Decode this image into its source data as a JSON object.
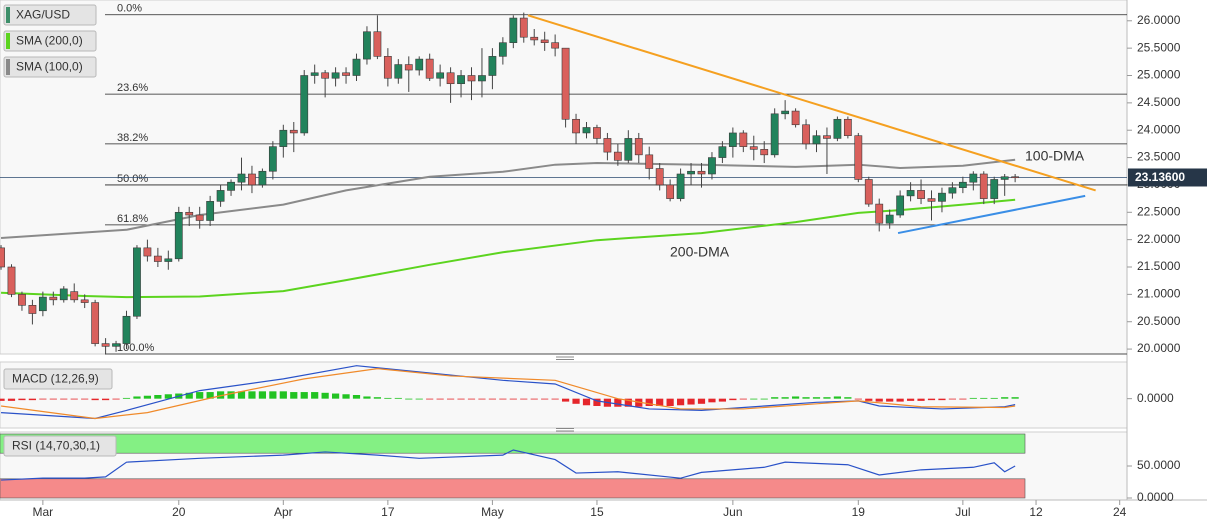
{
  "chart_data": [
    {
      "type": "candlestick",
      "name": "XAG/USD",
      "up_color": "#22835c",
      "down_color": "#d9605c",
      "xlim": [
        -4.1,
        103.7
      ],
      "ylim": [
        19.91,
        26.38
      ],
      "yticks": [
        {
          "value": 20,
          "label": "20.0000"
        },
        {
          "value": 20.5,
          "label": "20.5000"
        },
        {
          "value": 21,
          "label": "21.0000"
        },
        {
          "value": 21.5,
          "label": "21.5000"
        },
        {
          "value": 22,
          "label": "22.0000"
        },
        {
          "value": 22.5,
          "label": "22.5000"
        },
        {
          "value": 23,
          "label": "23.0000"
        },
        {
          "value": 23.5,
          "label": "23.5000"
        },
        {
          "value": 24,
          "label": "24.0000"
        },
        {
          "value": 24.5,
          "label": "24.5000"
        },
        {
          "value": 25,
          "label": "25.0000"
        },
        {
          "value": 25.5,
          "label": "25.5000"
        },
        {
          "value": 26,
          "label": "26.0000"
        }
      ],
      "x": [
        -4,
        -3,
        -2,
        -1,
        0,
        1,
        2,
        3,
        4,
        5,
        6,
        7,
        8,
        9,
        10,
        11,
        12,
        13,
        14,
        15,
        16,
        17,
        18,
        19,
        20,
        21,
        22,
        23,
        24,
        25,
        26,
        27,
        28,
        29,
        30,
        31,
        32,
        33,
        34,
        35,
        36,
        37,
        38,
        39,
        40,
        41,
        42,
        43,
        44,
        45,
        46,
        47,
        48,
        49,
        50,
        51,
        52,
        53,
        54,
        55,
        56,
        57,
        58,
        59,
        60,
        61,
        62,
        63,
        64,
        65,
        66,
        67,
        68,
        69,
        70,
        71,
        72,
        73,
        74,
        75,
        76,
        77,
        78,
        79,
        80,
        81,
        82,
        83,
        84,
        85,
        86,
        87,
        88,
        89,
        90,
        91,
        92,
        93
      ],
      "open": [
        21.85,
        21.5,
        21.0,
        20.8,
        20.7,
        20.95,
        20.9,
        21.05,
        20.9,
        20.85,
        20.1,
        20.05,
        20.1,
        20.6,
        21.85,
        21.7,
        21.6,
        21.65,
        22.5,
        22.45,
        22.35,
        22.7,
        22.9,
        23.05,
        23.2,
        23.0,
        23.25,
        23.7,
        24.0,
        23.95,
        25.0,
        25.05,
        24.95,
        25.05,
        25.0,
        25.3,
        25.8,
        25.35,
        24.95,
        25.2,
        25.1,
        25.3,
        24.95,
        25.05,
        24.85,
        25.0,
        24.9,
        25.0,
        25.35,
        25.6,
        26.05,
        25.7,
        25.65,
        25.6,
        25.5,
        24.2,
        23.95,
        24.05,
        23.85,
        23.6,
        23.45,
        23.85,
        23.55,
        23.3,
        23.0,
        22.75,
        23.2,
        23.25,
        23.2,
        23.5,
        23.7,
        23.95,
        23.7,
        23.65,
        23.55,
        24.3,
        24.35,
        24.1,
        23.75,
        23.9,
        23.85,
        24.2,
        23.9,
        23.1,
        22.65,
        22.3,
        22.45,
        22.8,
        22.9,
        22.75,
        22.7,
        22.85,
        22.95,
        23.05,
        23.2,
        22.75,
        23.1,
        23.15
      ],
      "high": [
        21.9,
        21.55,
        21.05,
        20.9,
        21.05,
        21.05,
        21.15,
        21.2,
        21.0,
        20.9,
        20.2,
        20.15,
        20.7,
        21.9,
        22.0,
        21.85,
        21.8,
        22.6,
        22.6,
        22.6,
        22.8,
        23.0,
        23.1,
        23.5,
        23.35,
        23.3,
        23.8,
        24.1,
        24.15,
        25.1,
        25.2,
        25.1,
        25.15,
        25.15,
        25.4,
        25.9,
        26.1,
        25.5,
        25.3,
        25.35,
        25.35,
        25.4,
        25.2,
        25.15,
        25.1,
        25.15,
        25.5,
        25.5,
        25.7,
        26.1,
        26.15,
        25.85,
        25.8,
        25.75,
        25.5,
        24.3,
        24.15,
        24.1,
        23.95,
        23.75,
        24.0,
        23.95,
        23.7,
        23.4,
        23.1,
        23.3,
        23.4,
        23.4,
        23.6,
        23.8,
        24.05,
        24.0,
        23.9,
        23.8,
        24.4,
        24.55,
        24.4,
        24.2,
        24.0,
        24.05,
        24.25,
        24.25,
        23.95,
        23.15,
        22.75,
        22.55,
        22.9,
        23.05,
        23.1,
        22.9,
        22.95,
        23.05,
        23.15,
        23.25,
        23.25,
        23.15,
        23.2,
        23.2
      ],
      "low": [
        21.45,
        20.95,
        20.7,
        20.45,
        20.6,
        20.8,
        20.85,
        20.85,
        20.75,
        20.05,
        19.9,
        19.95,
        20.0,
        20.55,
        21.6,
        21.5,
        21.45,
        21.6,
        22.25,
        22.2,
        22.25,
        22.6,
        22.8,
        22.9,
        22.85,
        22.95,
        23.1,
        23.5,
        23.6,
        23.9,
        24.85,
        24.6,
        24.8,
        24.85,
        24.9,
        25.2,
        25.3,
        24.8,
        24.85,
        24.7,
        25.0,
        24.9,
        24.8,
        24.5,
        24.6,
        24.55,
        24.6,
        24.75,
        25.2,
        25.5,
        25.6,
        25.55,
        25.45,
        25.35,
        24.05,
        23.75,
        23.85,
        23.75,
        23.45,
        23.35,
        23.4,
        23.4,
        23.1,
        22.9,
        22.7,
        22.7,
        23.0,
        22.95,
        23.1,
        23.4,
        23.5,
        23.6,
        23.45,
        23.4,
        23.5,
        24.2,
        24.05,
        23.65,
        23.6,
        23.2,
        23.8,
        23.85,
        23.05,
        22.6,
        22.15,
        22.2,
        22.4,
        22.7,
        22.65,
        22.35,
        22.5,
        22.75,
        22.85,
        22.9,
        22.65,
        22.65,
        22.8,
        23.05
      ],
      "close": [
        21.5,
        21.0,
        20.8,
        20.65,
        20.95,
        20.9,
        21.1,
        20.9,
        20.85,
        20.1,
        20.05,
        20.1,
        20.6,
        21.85,
        21.7,
        21.6,
        21.65,
        22.5,
        22.45,
        22.35,
        22.7,
        22.9,
        23.05,
        23.2,
        23.0,
        23.25,
        23.7,
        24.0,
        23.95,
        25.0,
        25.05,
        24.95,
        25.05,
        25.0,
        25.3,
        25.8,
        25.35,
        24.95,
        25.2,
        25.1,
        25.3,
        24.95,
        25.05,
        24.85,
        25.0,
        24.9,
        25.0,
        25.35,
        25.6,
        26.05,
        25.7,
        25.65,
        25.6,
        25.5,
        24.2,
        23.95,
        24.05,
        23.85,
        23.6,
        23.45,
        23.85,
        23.55,
        23.3,
        23.0,
        22.75,
        23.2,
        23.25,
        23.2,
        23.5,
        23.7,
        23.95,
        23.7,
        23.65,
        23.55,
        24.3,
        24.35,
        24.1,
        23.75,
        23.9,
        23.85,
        24.2,
        23.9,
        23.1,
        22.65,
        22.3,
        22.45,
        22.8,
        22.9,
        22.75,
        22.7,
        22.85,
        22.95,
        23.05,
        23.2,
        22.75,
        23.1,
        23.15,
        23.136
      ],
      "last_price": {
        "value": 23.136,
        "label": "23.13600"
      },
      "fib_levels": [
        {
          "value": 26.11,
          "label": "0.0%"
        },
        {
          "value": 24.66,
          "label": "23.6%"
        },
        {
          "value": 23.75,
          "label": "38.2%"
        },
        {
          "value": 23.0,
          "label": "50.0%"
        },
        {
          "value": 22.27,
          "label": "61.8%"
        },
        {
          "value": 19.91,
          "label": "100.0%"
        }
      ],
      "series": [
        {
          "name": "SMA (200,0)",
          "label": "200-DMA",
          "color": "#5cd41f",
          "x": [
            -4,
            4,
            8,
            15,
            23,
            29,
            37,
            44,
            53,
            63,
            72,
            78,
            82,
            88,
            93
          ],
          "values": [
            21.03,
            20.97,
            20.95,
            20.96,
            21.06,
            21.26,
            21.54,
            21.77,
            21.99,
            22.12,
            22.32,
            22.49,
            22.54,
            22.64,
            22.73
          ]
        },
        {
          "name": "SMA (100,0)",
          "label": "100-DMA",
          "color": "#8a8a8a",
          "x": [
            -4,
            8,
            15,
            23,
            29,
            37,
            44,
            49,
            53,
            63,
            72,
            78,
            82,
            88,
            93
          ],
          "values": [
            22.03,
            22.18,
            22.45,
            22.64,
            22.9,
            23.15,
            23.24,
            23.37,
            23.4,
            23.37,
            23.33,
            23.37,
            23.31,
            23.35,
            23.46
          ]
        }
      ],
      "trendlines": [
        {
          "color": "#f5a020",
          "x": [
            46.4,
            100.7
          ],
          "values": [
            26.1,
            22.9
          ]
        },
        {
          "color": "#3a8ee6",
          "x": [
            81.8,
            99.7
          ],
          "values": [
            22.12,
            22.8
          ]
        }
      ]
    },
    {
      "type": "macd",
      "name": "MACD (12,26,9)",
      "xlim": [
        -4.1,
        103.7
      ],
      "ylim": [
        -0.4,
        0.5
      ],
      "yticks": [
        {
          "value": 0,
          "label": "0.0000"
        }
      ],
      "histogram_colors": [
        "#22c322",
        "#e5262b"
      ],
      "x": [
        -4,
        -3,
        -2,
        -1,
        0,
        1,
        2,
        3,
        4,
        5,
        6,
        7,
        8,
        9,
        10,
        11,
        12,
        13,
        14,
        15,
        16,
        17,
        18,
        19,
        20,
        21,
        22,
        23,
        24,
        25,
        26,
        27,
        28,
        29,
        30,
        31,
        32,
        33,
        34,
        35,
        36,
        37,
        38,
        39,
        40,
        41,
        42,
        43,
        44,
        45,
        46,
        47,
        48,
        49,
        50,
        51,
        52,
        53,
        54,
        55,
        56,
        57,
        58,
        59,
        60,
        61,
        62,
        63,
        64,
        65,
        66,
        67,
        68,
        69,
        70,
        71,
        72,
        73,
        74,
        75,
        76,
        77,
        78,
        79,
        80,
        81,
        82,
        83,
        84,
        85,
        86,
        87,
        88,
        89,
        90,
        91,
        92,
        93
      ],
      "histogram": [
        -0.03,
        -0.03,
        -0.02,
        -0.02,
        -0.01,
        -0.01,
        -0.01,
        -0.01,
        -0.01,
        -0.02,
        -0.02,
        -0.01,
        0.01,
        0.03,
        0.04,
        0.05,
        0.06,
        0.07,
        0.08,
        0.09,
        0.09,
        0.1,
        0.1,
        0.1,
        0.1,
        0.1,
        0.1,
        0.1,
        0.09,
        0.09,
        0.09,
        0.08,
        0.07,
        0.06,
        0.05,
        0.03,
        0.02,
        0.01,
        0.01,
        0,
        0,
        -0.01,
        -0.01,
        -0.01,
        -0.01,
        -0.01,
        -0.01,
        -0.01,
        -0.01,
        -0.01,
        -0.01,
        -0.01,
        -0.01,
        -0.01,
        -0.04,
        -0.07,
        -0.09,
        -0.1,
        -0.11,
        -0.11,
        -0.11,
        -0.11,
        -0.1,
        -0.1,
        -0.1,
        -0.09,
        -0.08,
        -0.07,
        -0.05,
        -0.04,
        -0.02,
        -0.01,
        0,
        0,
        0.02,
        0.02,
        0.03,
        0.02,
        0.02,
        0.02,
        0.03,
        0.02,
        -0.01,
        -0.03,
        -0.04,
        -0.04,
        -0.04,
        -0.03,
        -0.03,
        -0.02,
        -0.02,
        -0.01,
        -0.01,
        0.01,
        0.01,
        0.01,
        0.02,
        0.02
      ],
      "series": [
        {
          "color": "#2a52c8",
          "x": [
            -4,
            5,
            8,
            15,
            23,
            30,
            37,
            44,
            49,
            53,
            58,
            63,
            69,
            74,
            78,
            80,
            86,
            92,
            93
          ],
          "values": [
            -0.19,
            -0.27,
            -0.16,
            0.11,
            0.27,
            0.45,
            0.35,
            0.25,
            0.2,
            -0.03,
            -0.14,
            -0.16,
            -0.1,
            -0.05,
            -0.03,
            -0.1,
            -0.14,
            -0.11,
            -0.08
          ]
        },
        {
          "color": "#f08a2a",
          "x": [
            -4,
            5,
            10,
            17,
            25,
            32,
            39,
            49,
            55,
            61,
            67,
            74,
            78,
            84,
            92,
            93
          ],
          "values": [
            -0.1,
            -0.27,
            -0.19,
            0.04,
            0.27,
            0.41,
            0.31,
            0.25,
            0,
            -0.14,
            -0.14,
            -0.07,
            -0.03,
            -0.11,
            -0.12,
            -0.1
          ]
        }
      ]
    },
    {
      "type": "rsi",
      "name": "RSI (14,70,30,1)",
      "xlim": [
        -4.1,
        103.7
      ],
      "ylim": [
        0,
        100
      ],
      "yticks": [
        {
          "value": 0,
          "label": "0.0000"
        },
        {
          "value": 50,
          "label": "50.0000"
        }
      ],
      "levels": [
        30,
        70
      ],
      "zone_colors": [
        "#f58a8a",
        "#84f084"
      ],
      "xticks": [
        {
          "value": 0,
          "label": "Mar"
        },
        {
          "value": 13,
          "label": "20"
        },
        {
          "value": 23,
          "label": "Apr"
        },
        {
          "value": 33,
          "label": "17"
        },
        {
          "value": 43,
          "label": "May"
        },
        {
          "value": 53,
          "label": "15"
        },
        {
          "value": 66,
          "label": "Jun"
        },
        {
          "value": 78,
          "label": "19"
        },
        {
          "value": 88,
          "label": "Jul"
        },
        {
          "value": 95,
          "label": "12"
        },
        {
          "value": 103,
          "label": "24"
        }
      ],
      "series": [
        {
          "color": "#2a52c8",
          "x": [
            -4,
            0,
            4,
            6,
            8,
            15,
            23,
            27,
            32,
            36,
            44,
            45,
            49,
            51,
            55,
            61,
            63,
            69,
            71,
            77,
            80,
            84,
            89,
            91,
            92,
            93
          ],
          "values": [
            28,
            31,
            31,
            33,
            56,
            62,
            67,
            72,
            67,
            62,
            67,
            75,
            60,
            39,
            41,
            31,
            40,
            48,
            56,
            52,
            36,
            44,
            48,
            55,
            41,
            50
          ]
        }
      ]
    }
  ]
}
